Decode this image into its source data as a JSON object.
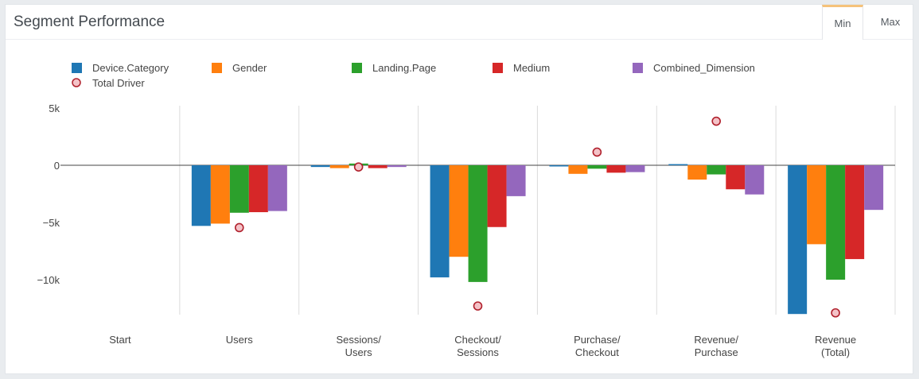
{
  "panel": {
    "title": "Segment Performance",
    "tabs": [
      {
        "label": "Min",
        "active": true
      },
      {
        "label": "Max",
        "active": false
      }
    ]
  },
  "colors": {
    "series": [
      "#1f77b4",
      "#ff7f0e",
      "#2ca02c",
      "#d62728",
      "#9467bd"
    ],
    "total_driver_fill": "#f4c2c7",
    "total_driver_stroke": "#b0202c",
    "grid": "#dcdcdc",
    "zero_line": "#444444"
  },
  "chart_data": {
    "type": "bar",
    "title": "",
    "xlabel": "",
    "ylabel": "",
    "ylim": [
      -13000,
      5000
    ],
    "yticks": [
      5000,
      0,
      -5000,
      -10000
    ],
    "ytick_labels": [
      "5k",
      "0",
      "−5k",
      "−10k"
    ],
    "categories": [
      [
        "Start"
      ],
      [
        "Users"
      ],
      [
        "Sessions/",
        "Users"
      ],
      [
        "Checkout/",
        "Sessions"
      ],
      [
        "Purchase/",
        "Checkout"
      ],
      [
        "Revenue/",
        "Purchase"
      ],
      [
        "Revenue",
        "(Total)"
      ]
    ],
    "series": [
      {
        "name": "Device.Category",
        "values": [
          0,
          -5300,
          -150,
          -9800,
          -100,
          100,
          -13000
        ]
      },
      {
        "name": "Gender",
        "values": [
          0,
          -5100,
          -250,
          -8000,
          -750,
          -1250,
          -6900
        ]
      },
      {
        "name": "Landing.Page",
        "values": [
          0,
          -4150,
          150,
          -10200,
          -300,
          -800,
          -10000
        ]
      },
      {
        "name": "Medium",
        "values": [
          0,
          -4100,
          -250,
          -5400,
          -650,
          -2100,
          -8200
        ]
      },
      {
        "name": "Combined_Dimension",
        "values": [
          0,
          -4000,
          -150,
          -2700,
          -600,
          -2550,
          -3900
        ]
      }
    ],
    "total_driver": {
      "name": "Total Driver",
      "values": [
        null,
        -5450,
        -150,
        -12300,
        1150,
        3850,
        -12900
      ]
    },
    "legend_position": "top-left",
    "grid": true
  }
}
